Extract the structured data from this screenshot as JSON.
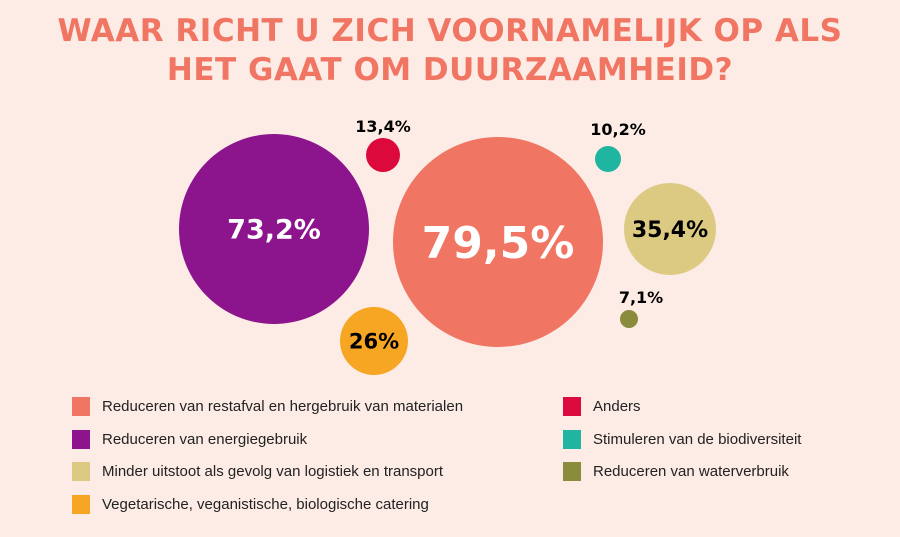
{
  "chart_data": {
    "type": "bubble",
    "title_lines": [
      "WAAR RICHT U ZICH VOORNAMELIJK OP ALS",
      "HET GAAT OM DUURZAAMHEID?"
    ],
    "series": [
      {
        "name": "Reduceren van restafval en hergebruik van materialen",
        "value": 79.5,
        "label": "79,5%",
        "color": "#f07562",
        "label_color": "#ffffff"
      },
      {
        "name": "Reduceren van energiegebruik",
        "value": 73.2,
        "label": "73,2%",
        "color": "#8c148c",
        "label_color": "#ffffff"
      },
      {
        "name": "Minder uitstoot als gevolg van logistiek en transport",
        "value": 35.4,
        "label": "35,4%",
        "color": "#dcca82",
        "label_color": "#000000"
      },
      {
        "name": "Vegetarische, veganistische, biologische catering",
        "value": 26,
        "label": "26%",
        "color": "#f6a623",
        "label_color": "#000000"
      },
      {
        "name": "Anders",
        "value": 13.4,
        "label": "13,4%",
        "color": "#dc0a3c",
        "label_color": "#000000"
      },
      {
        "name": "Stimuleren van de biodiversiteit",
        "value": 10.2,
        "label": "10,2%",
        "color": "#1fb5a0",
        "label_color": "#000000"
      },
      {
        "name": "Reduceren van waterverbruik",
        "value": 7.1,
        "label": "7,1%",
        "color": "#8a8c3c",
        "label_color": "#000000"
      }
    ],
    "legend_placement": "bottom"
  }
}
